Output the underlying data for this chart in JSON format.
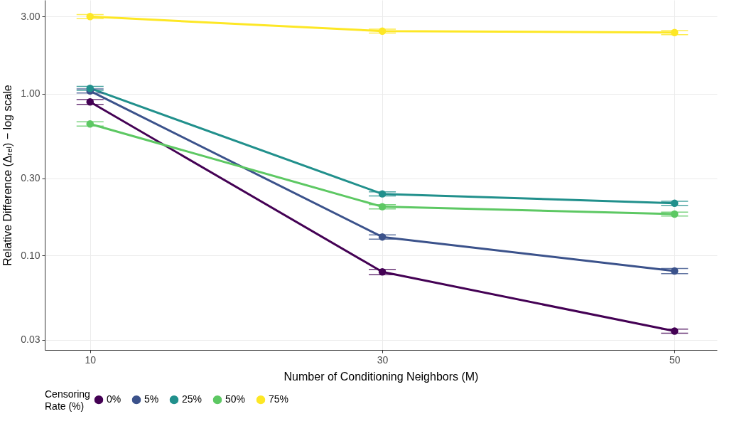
{
  "chart_data": {
    "type": "line",
    "xlabel": "Number of Conditioning Neighbors (M)",
    "ylabel": "Relative Difference (Δᵣₑₗ) − log scale",
    "legend_title": "Censoring\nRate (%)",
    "x": [
      10,
      30,
      50
    ],
    "xlim": [
      6.9,
      52.9
    ],
    "xticks": [
      10,
      30,
      50
    ],
    "ylim": [
      0.026,
      3.8
    ],
    "yticks": [
      {
        "value": 0.03,
        "label": "0.03"
      },
      {
        "value": 0.1,
        "label": "0.10"
      },
      {
        "value": 0.3,
        "label": "0.30"
      },
      {
        "value": 1,
        "label": "1.00"
      },
      {
        "value": 3,
        "label": "3.00"
      }
    ],
    "log": true,
    "grid": true,
    "legend": "bottom",
    "marker": "circle",
    "line_style": "solid",
    "series": [
      {
        "name": "0%",
        "color": "#440154",
        "values": [
          0.89,
          0.079,
          0.034
        ],
        "errors": [
          [
            0.86,
            0.92
          ],
          [
            0.076,
            0.082
          ],
          [
            0.033,
            0.035
          ]
        ]
      },
      {
        "name": "5%",
        "color": "#3b528b",
        "values": [
          1.04,
          0.13,
          0.08
        ],
        "errors": [
          [
            1.01,
            1.07
          ],
          [
            0.126,
            0.134
          ],
          [
            0.077,
            0.083
          ]
        ]
      },
      {
        "name": "25%",
        "color": "#21908c",
        "values": [
          1.08,
          0.24,
          0.21
        ],
        "errors": [
          [
            1.05,
            1.11
          ],
          [
            0.233,
            0.247
          ],
          [
            0.204,
            0.216
          ]
        ]
      },
      {
        "name": "50%",
        "color": "#5dc863",
        "values": [
          0.65,
          0.2,
          0.18
        ],
        "errors": [
          [
            0.63,
            0.67
          ],
          [
            0.194,
            0.206
          ],
          [
            0.175,
            0.185
          ]
        ]
      },
      {
        "name": "75%",
        "color": "#fde725",
        "values": [
          3.0,
          2.44,
          2.39
        ],
        "errors": [
          [
            2.91,
            3.09
          ],
          [
            2.37,
            2.51
          ],
          [
            2.32,
            2.46
          ]
        ]
      }
    ]
  }
}
